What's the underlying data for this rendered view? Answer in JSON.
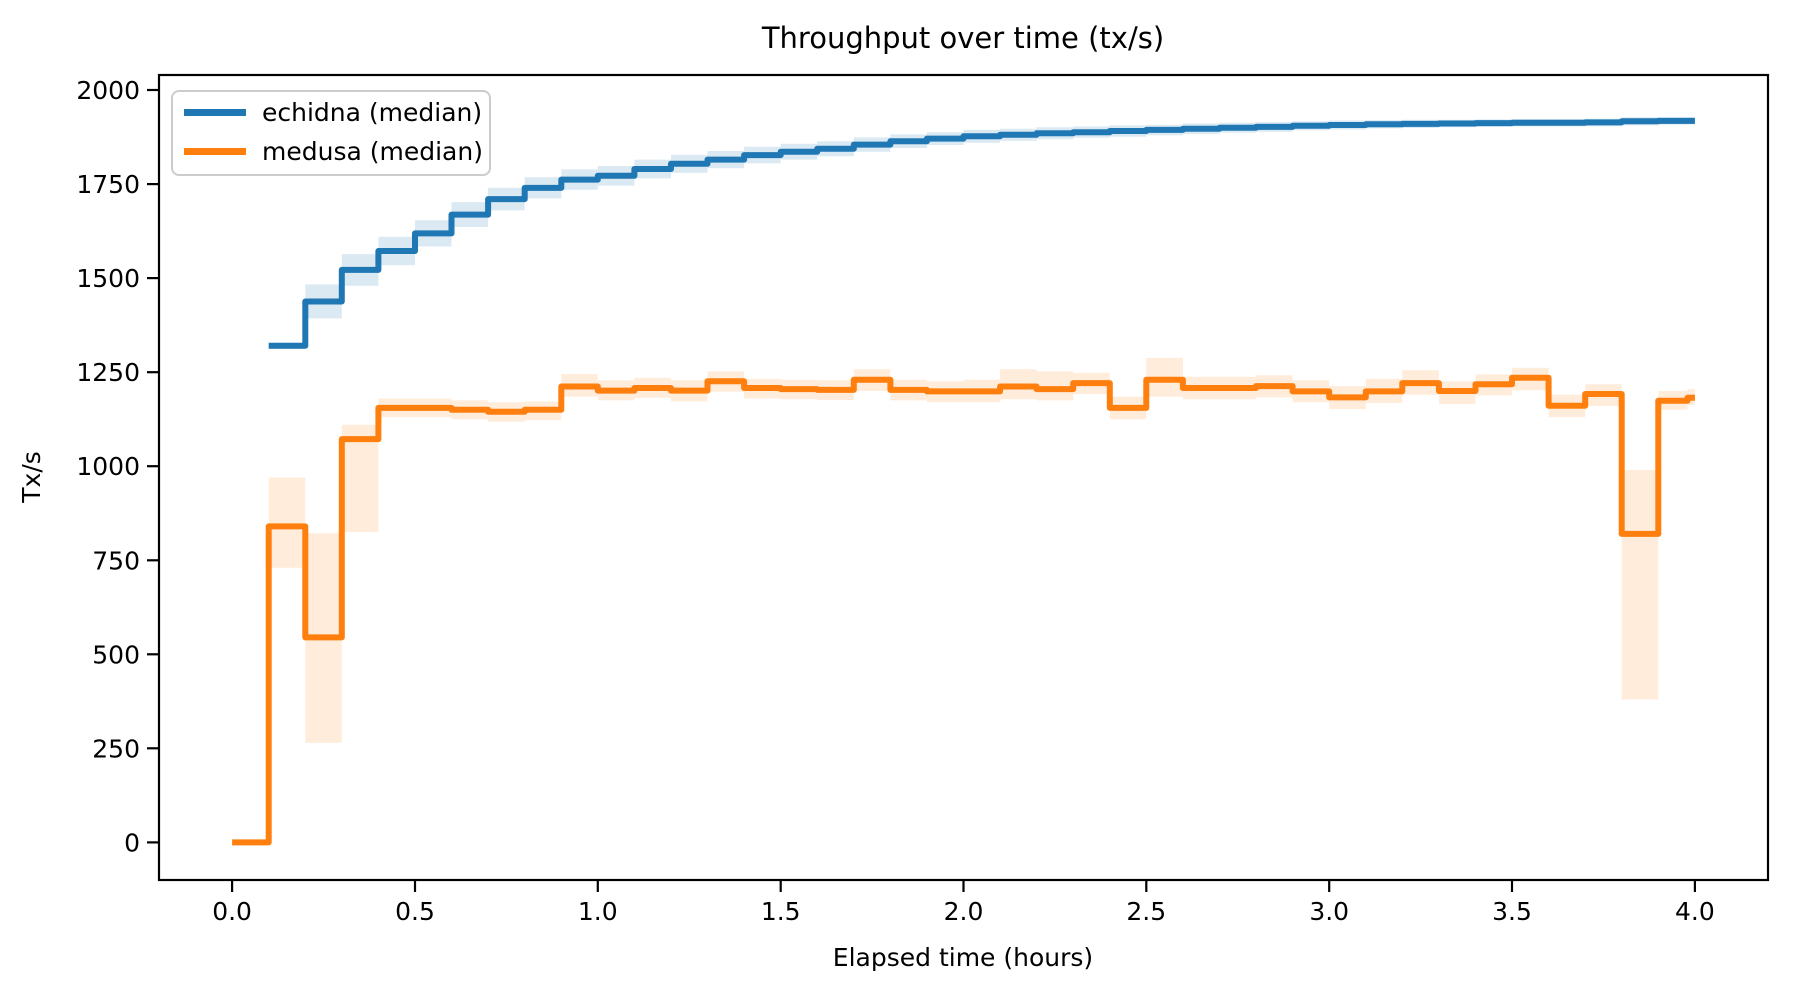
{
  "figure": {
    "background": "#ffffff",
    "text_color": "#000000"
  },
  "chart_data": {
    "type": "line",
    "subtype": "step-post-with-band",
    "title": "Throughput over time (tx/s)",
    "xlabel": "Elapsed time (hours)",
    "ylabel": "Tx/s",
    "xlim": [
      -0.2,
      4.2
    ],
    "ylim": [
      -100,
      2040
    ],
    "grid": false,
    "legend_position": "upper left",
    "xticks": [
      0.0,
      0.5,
      1.0,
      1.5,
      2.0,
      2.5,
      3.0,
      3.5,
      4.0
    ],
    "xtick_labels": [
      "0.0",
      "0.5",
      "1.0",
      "1.5",
      "2.0",
      "2.5",
      "3.0",
      "3.5",
      "4.0"
    ],
    "yticks": [
      0,
      250,
      500,
      750,
      1000,
      1250,
      1500,
      1750,
      2000
    ],
    "ytick_labels": [
      "0",
      "250",
      "500",
      "750",
      "1000",
      "1250",
      "1500",
      "1750",
      "2000"
    ],
    "series": [
      {
        "slug": "echidna",
        "name": "echidna (median)",
        "color": "#1f77b4",
        "band_opacity": 0.16,
        "t": [
          0.1,
          0.2,
          0.3,
          0.4,
          0.5,
          0.6,
          0.7,
          0.8,
          0.9,
          1.0,
          1.1,
          1.2,
          1.3,
          1.4,
          1.5,
          1.6,
          1.7,
          1.8,
          1.9,
          2.0,
          2.1,
          2.2,
          2.3,
          2.4,
          2.5,
          2.6,
          2.7,
          2.8,
          2.9,
          3.0,
          3.1,
          3.2,
          3.3,
          3.4,
          3.5,
          3.6,
          3.7,
          3.8,
          3.9,
          4.0
        ],
        "median": [
          1320,
          1438,
          1522,
          1572,
          1619,
          1669,
          1710,
          1740,
          1762,
          1772,
          1790,
          1804,
          1815,
          1827,
          1836,
          1844,
          1855,
          1864,
          1871,
          1877,
          1881,
          1885,
          1888,
          1891,
          1894,
          1897,
          1900,
          1902,
          1905,
          1907,
          1909,
          1910,
          1911,
          1912,
          1913,
          1913,
          1914,
          1917,
          1918
        ],
        "band_low": [
          1312,
          1393,
          1480,
          1534,
          1584,
          1636,
          1680,
          1712,
          1735,
          1746,
          1765,
          1780,
          1792,
          1805,
          1815,
          1824,
          1836,
          1846,
          1854,
          1860,
          1865,
          1869,
          1873,
          1876,
          1880,
          1883,
          1887,
          1889,
          1893,
          1895,
          1898,
          1899,
          1901,
          1902,
          1903,
          1903,
          1904,
          1906,
          1908
        ],
        "band_high": [
          1328,
          1483,
          1564,
          1610,
          1654,
          1702,
          1740,
          1768,
          1789,
          1798,
          1815,
          1828,
          1838,
          1849,
          1857,
          1864,
          1874,
          1882,
          1888,
          1894,
          1897,
          1901,
          1903,
          1906,
          1908,
          1911,
          1913,
          1915,
          1917,
          1919,
          1920,
          1921,
          1921,
          1922,
          1923,
          1923,
          1924,
          1928,
          1928
        ]
      },
      {
        "slug": "medusa",
        "name": "medusa (median)",
        "color": "#ff7f0e",
        "band_opacity": 0.15,
        "t": [
          0.0,
          0.1,
          0.2,
          0.3,
          0.4,
          0.5,
          0.6,
          0.7,
          0.8,
          0.9,
          1.0,
          1.1,
          1.2,
          1.3,
          1.4,
          1.5,
          1.6,
          1.7,
          1.8,
          1.9,
          2.0,
          2.1,
          2.2,
          2.3,
          2.4,
          2.5,
          2.6,
          2.7,
          2.8,
          2.9,
          3.0,
          3.1,
          3.2,
          3.3,
          3.4,
          3.5,
          3.6,
          3.7,
          3.8,
          3.9,
          3.98,
          4.0
        ],
        "median": [
          0,
          840,
          545,
          1072,
          1155,
          1155,
          1150,
          1145,
          1150,
          1212,
          1201,
          1208,
          1201,
          1226,
          1208,
          1205,
          1203,
          1230,
          1203,
          1199,
          1199,
          1212,
          1205,
          1221,
          1155,
          1230,
          1208,
          1208,
          1213,
          1199,
          1183,
          1199,
          1221,
          1200,
          1218,
          1235,
          1161,
          1192,
          820,
          1174,
          1182
        ],
        "band_low": [
          0,
          730,
          265,
          825,
          1130,
          1130,
          1125,
          1118,
          1122,
          1185,
          1175,
          1182,
          1172,
          1198,
          1180,
          1178,
          1176,
          1200,
          1175,
          1170,
          1170,
          1178,
          1175,
          1192,
          1125,
          1185,
          1178,
          1178,
          1183,
          1170,
          1152,
          1168,
          1190,
          1165,
          1188,
          1202,
          1130,
          1160,
          380,
          1150,
          1162
        ],
        "band_high": [
          0,
          970,
          822,
          1110,
          1180,
          1180,
          1175,
          1170,
          1172,
          1245,
          1228,
          1235,
          1228,
          1252,
          1232,
          1230,
          1228,
          1258,
          1230,
          1226,
          1230,
          1258,
          1252,
          1248,
          1185,
          1288,
          1238,
          1238,
          1242,
          1228,
          1213,
          1232,
          1255,
          1226,
          1244,
          1262,
          1190,
          1218,
          990,
          1200,
          1205
        ]
      }
    ]
  },
  "legend": {
    "items": [
      {
        "label": "echidna (median)",
        "color": "#1f77b4"
      },
      {
        "label": "medusa (median)",
        "color": "#ff7f0e"
      }
    ]
  }
}
